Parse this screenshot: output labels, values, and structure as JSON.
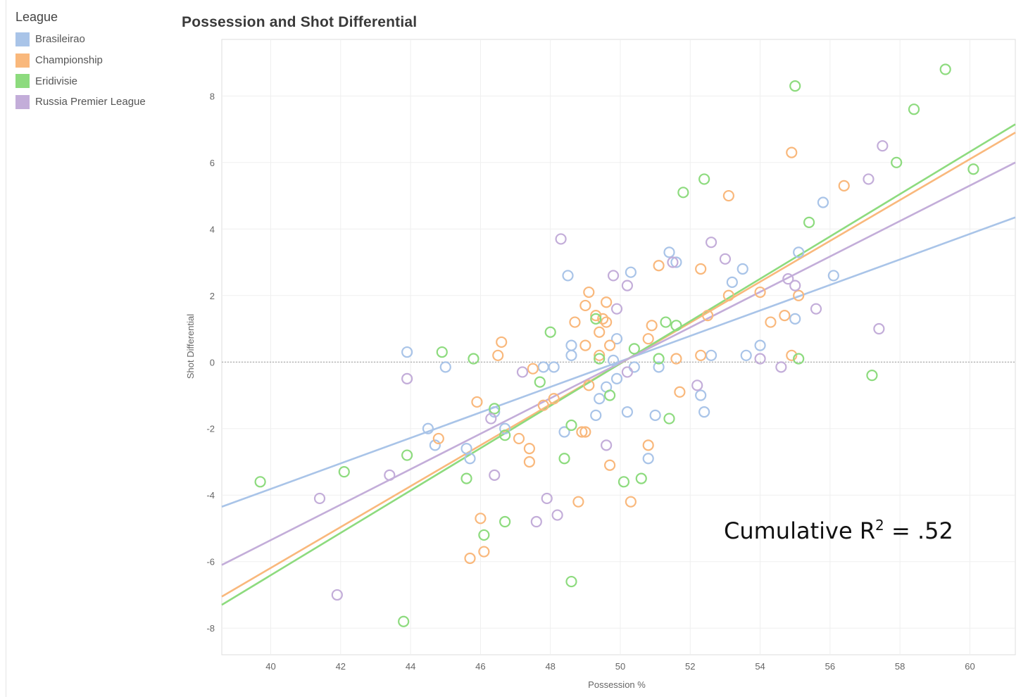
{
  "legend": {
    "title": "League",
    "items": [
      {
        "label": "Brasileirao",
        "color": "#a9c4e8"
      },
      {
        "label": "Championship",
        "color": "#f9b87c"
      },
      {
        "label": "Eridivisie",
        "color": "#8ddb7e"
      },
      {
        "label": "Russia Premier League",
        "color": "#c3add9"
      }
    ]
  },
  "annotation": {
    "prefix": "Cumulative R",
    "sup": "2",
    "suffix": " = .52"
  },
  "chart_data": {
    "type": "scatter",
    "title": "Possession and Shot Differential",
    "xlabel": "Possession %",
    "ylabel": "Shot Differential",
    "xlim": [
      38.6,
      61.3
    ],
    "ylim": [
      -8.8,
      9.7
    ],
    "x_ticks": [
      40,
      42,
      44,
      46,
      48,
      50,
      52,
      54,
      56,
      58,
      60
    ],
    "y_ticks": [
      8,
      6,
      4,
      2,
      0,
      -2,
      -4,
      -6,
      -8
    ],
    "grid": true,
    "zero_reference_line": true,
    "legend_position": "top-left",
    "series": [
      {
        "name": "Brasileirao",
        "color": "#a9c4e8",
        "points": [
          [
            43.9,
            0.3
          ],
          [
            44.5,
            -2.0
          ],
          [
            44.7,
            -2.5
          ],
          [
            45.0,
            -0.15
          ],
          [
            45.6,
            -2.6
          ],
          [
            45.7,
            -2.9
          ],
          [
            46.4,
            -1.5
          ],
          [
            46.7,
            -2.0
          ],
          [
            47.8,
            -0.15
          ],
          [
            48.1,
            -0.15
          ],
          [
            48.4,
            -2.1
          ],
          [
            48.5,
            2.6
          ],
          [
            48.6,
            0.5
          ],
          [
            48.6,
            0.2
          ],
          [
            49.3,
            -1.6
          ],
          [
            49.4,
            -1.1
          ],
          [
            49.6,
            -0.75
          ],
          [
            49.8,
            0.05
          ],
          [
            49.9,
            -0.5
          ],
          [
            49.9,
            0.7
          ],
          [
            50.2,
            -1.5
          ],
          [
            50.3,
            2.7
          ],
          [
            50.4,
            -0.15
          ],
          [
            50.8,
            -2.9
          ],
          [
            51.0,
            -1.6
          ],
          [
            51.1,
            -0.15
          ],
          [
            51.4,
            3.3
          ],
          [
            51.6,
            3.0
          ],
          [
            52.3,
            -1.0
          ],
          [
            52.4,
            -1.5
          ],
          [
            52.6,
            0.2
          ],
          [
            53.2,
            2.4
          ],
          [
            53.5,
            2.8
          ],
          [
            53.6,
            0.2
          ],
          [
            54.0,
            0.5
          ],
          [
            55.0,
            1.3
          ],
          [
            55.1,
            3.3
          ],
          [
            55.8,
            4.8
          ],
          [
            56.1,
            2.6
          ]
        ]
      },
      {
        "name": "Championship",
        "color": "#f9b87c",
        "points": [
          [
            44.8,
            -2.3
          ],
          [
            45.9,
            -1.2
          ],
          [
            46.5,
            0.2
          ],
          [
            46.6,
            0.6
          ],
          [
            47.1,
            -2.3
          ],
          [
            47.4,
            -2.6
          ],
          [
            47.4,
            -3.0
          ],
          [
            47.5,
            -0.2
          ],
          [
            47.8,
            -1.3
          ],
          [
            48.1,
            -1.1
          ],
          [
            48.7,
            1.2
          ],
          [
            48.8,
            -4.2
          ],
          [
            48.9,
            -2.1
          ],
          [
            49.0,
            -2.1
          ],
          [
            49.0,
            0.5
          ],
          [
            49.0,
            1.7
          ],
          [
            49.1,
            2.1
          ],
          [
            49.1,
            -0.7
          ],
          [
            49.3,
            1.4
          ],
          [
            49.4,
            0.2
          ],
          [
            49.4,
            0.9
          ],
          [
            49.5,
            1.3
          ],
          [
            49.6,
            1.2
          ],
          [
            49.6,
            1.8
          ],
          [
            49.7,
            -3.1
          ],
          [
            49.7,
            0.5
          ],
          [
            50.3,
            -4.2
          ],
          [
            50.8,
            -2.5
          ],
          [
            50.8,
            0.7
          ],
          [
            50.9,
            1.1
          ],
          [
            51.1,
            2.9
          ],
          [
            51.6,
            0.1
          ],
          [
            51.7,
            -0.9
          ],
          [
            52.3,
            2.8
          ],
          [
            52.3,
            0.2
          ],
          [
            52.5,
            1.4
          ],
          [
            53.1,
            2.0
          ],
          [
            53.1,
            5.0
          ],
          [
            54.0,
            2.1
          ],
          [
            54.3,
            1.2
          ],
          [
            54.7,
            1.4
          ],
          [
            54.9,
            0.2
          ],
          [
            54.9,
            6.3
          ],
          [
            55.1,
            2.0
          ],
          [
            56.4,
            5.3
          ],
          [
            45.7,
            -5.9
          ],
          [
            46.0,
            -4.7
          ],
          [
            46.1,
            -5.7
          ]
        ]
      },
      {
        "name": "Eridivisie",
        "color": "#8ddb7e",
        "points": [
          [
            39.7,
            -3.6
          ],
          [
            42.1,
            -3.3
          ],
          [
            43.8,
            -7.8
          ],
          [
            43.9,
            -2.8
          ],
          [
            44.9,
            0.3
          ],
          [
            45.6,
            -3.5
          ],
          [
            45.8,
            0.1
          ],
          [
            46.1,
            -5.2
          ],
          [
            46.4,
            -1.4
          ],
          [
            46.7,
            -2.2
          ],
          [
            46.7,
            -4.8
          ],
          [
            47.7,
            -0.6
          ],
          [
            48.0,
            0.9
          ],
          [
            48.4,
            -2.9
          ],
          [
            48.6,
            -6.6
          ],
          [
            48.6,
            -1.9
          ],
          [
            49.3,
            1.3
          ],
          [
            49.4,
            0.1
          ],
          [
            49.7,
            -1.0
          ],
          [
            50.1,
            -3.6
          ],
          [
            50.4,
            0.4
          ],
          [
            50.6,
            -3.5
          ],
          [
            51.1,
            0.1
          ],
          [
            51.3,
            1.2
          ],
          [
            51.4,
            -1.7
          ],
          [
            51.6,
            1.1
          ],
          [
            51.8,
            5.1
          ],
          [
            52.4,
            5.5
          ],
          [
            55.0,
            8.3
          ],
          [
            55.1,
            0.1
          ],
          [
            55.4,
            4.2
          ],
          [
            57.2,
            -0.4
          ],
          [
            57.9,
            6.0
          ],
          [
            58.4,
            7.6
          ],
          [
            59.3,
            8.8
          ],
          [
            60.1,
            5.8
          ]
        ]
      },
      {
        "name": "Russia Premier League",
        "color": "#c3add9",
        "points": [
          [
            41.4,
            -4.1
          ],
          [
            41.9,
            -7.0
          ],
          [
            43.4,
            -3.4
          ],
          [
            43.9,
            -0.5
          ],
          [
            46.3,
            -1.7
          ],
          [
            46.4,
            -3.4
          ],
          [
            47.2,
            -0.3
          ],
          [
            47.6,
            -4.8
          ],
          [
            47.9,
            -4.1
          ],
          [
            48.2,
            -4.6
          ],
          [
            48.3,
            3.7
          ],
          [
            49.6,
            -2.5
          ],
          [
            49.8,
            2.6
          ],
          [
            49.9,
            1.6
          ],
          [
            50.2,
            2.3
          ],
          [
            50.2,
            -0.3
          ],
          [
            51.5,
            3.0
          ],
          [
            52.2,
            -0.7
          ],
          [
            52.6,
            3.6
          ],
          [
            53.0,
            3.1
          ],
          [
            54.0,
            0.1
          ],
          [
            54.6,
            -0.15
          ],
          [
            54.8,
            2.5
          ],
          [
            55.0,
            2.3
          ],
          [
            55.6,
            1.6
          ],
          [
            57.1,
            5.5
          ],
          [
            57.4,
            1.0
          ],
          [
            57.5,
            6.5
          ]
        ]
      }
    ],
    "trend_lines": [
      {
        "name": "Brasileirao",
        "color": "#a9c4e8",
        "x": [
          38.6,
          61.3
        ],
        "y": [
          -4.35,
          4.35
        ]
      },
      {
        "name": "Championship",
        "color": "#f9b87c",
        "x": [
          38.6,
          61.3
        ],
        "y": [
          -7.05,
          6.9
        ]
      },
      {
        "name": "Eridivisie",
        "color": "#8ddb7e",
        "x": [
          38.6,
          61.3
        ],
        "y": [
          -7.3,
          7.15
        ]
      },
      {
        "name": "Russia Premier League",
        "color": "#c3add9",
        "x": [
          38.6,
          61.3
        ],
        "y": [
          -6.1,
          6.0
        ]
      }
    ]
  }
}
